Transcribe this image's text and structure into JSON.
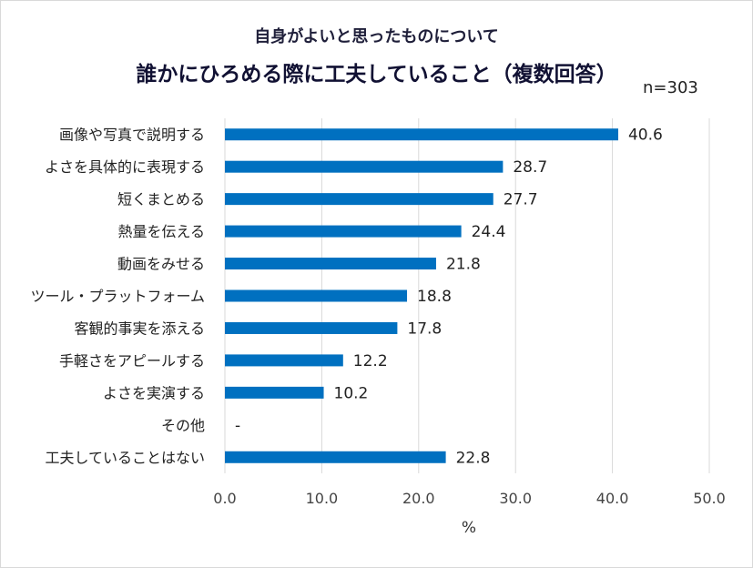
{
  "chart_data": {
    "type": "bar",
    "orientation": "horizontal",
    "title": "自身がよいと思ったものについて",
    "subtitle": "誰かにひろめる際に工夫していること（複数回答）",
    "n_label": "n=303",
    "xlabel": "%",
    "xlim": [
      0,
      50
    ],
    "xticks": [
      "0.0",
      "10.0",
      "20.0",
      "30.0",
      "40.0",
      "50.0"
    ],
    "grid": true,
    "bar_color": "#0070c0",
    "categories": [
      "画像や写真で説明する",
      "よさを具体的に表現する",
      "短くまとめる",
      "熱量を伝える",
      "動画をみせる",
      "ツール・プラットフォーム",
      "客観的事実を添える",
      "手軽さをアピールする",
      "よさを実演する",
      "その他",
      "工夫していることはない"
    ],
    "values": [
      40.6,
      28.7,
      27.7,
      24.4,
      21.8,
      18.8,
      17.8,
      12.2,
      10.2,
      null,
      22.8
    ],
    "value_labels": [
      "40.6",
      "28.7",
      "27.7",
      "24.4",
      "21.8",
      "18.8",
      "17.8",
      "12.2",
      "10.2",
      "-",
      "22.8"
    ]
  }
}
